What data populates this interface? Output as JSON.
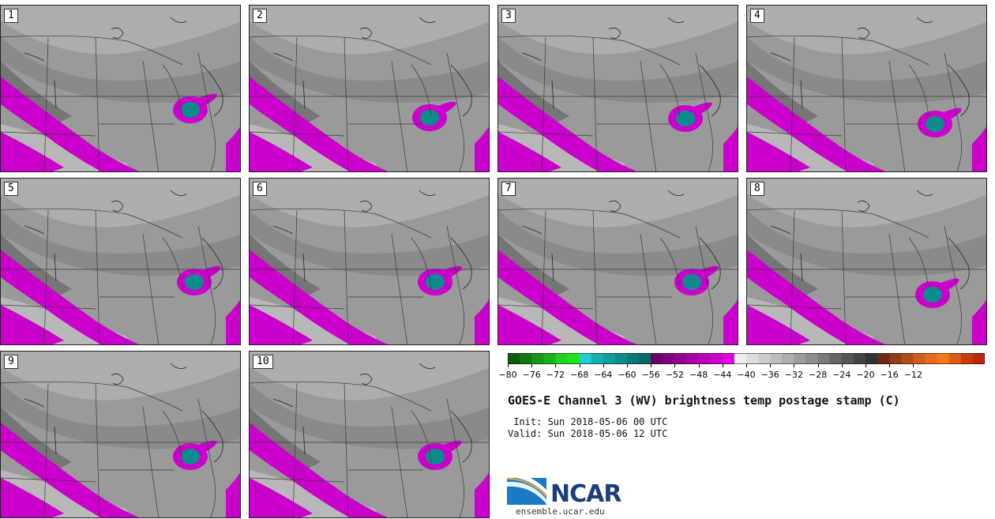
{
  "panels": [
    {
      "label": "1"
    },
    {
      "label": "2"
    },
    {
      "label": "3"
    },
    {
      "label": "4"
    },
    {
      "label": "5"
    },
    {
      "label": "6"
    },
    {
      "label": "7"
    },
    {
      "label": "8"
    },
    {
      "label": "9"
    },
    {
      "label": "10"
    }
  ],
  "colorbar": {
    "colors": [
      "#0a5c0a",
      "#0f7a0f",
      "#14961a",
      "#1ab21a",
      "#22d222",
      "#19e619",
      "#22cccc",
      "#14b0b0",
      "#109d9d",
      "#0c8c8c",
      "#0a7878",
      "#0a6a6a",
      "#6a006a",
      "#800080",
      "#920092",
      "#a600a6",
      "#bb00bb",
      "#cc00cc",
      "#e000e0",
      "#eeeeee",
      "#dcdcdc",
      "#cccccc",
      "#bdbdbd",
      "#adadad",
      "#9c9c9c",
      "#8c8c8c",
      "#7a7a7a",
      "#666666",
      "#555555",
      "#444444",
      "#333333",
      "#6b2a14",
      "#8f3b1a",
      "#b34a1a",
      "#d45c1a",
      "#e86a1a",
      "#f07a14",
      "#e05a14",
      "#cc3a0c",
      "#b82a0a"
    ],
    "tick_labels": [
      "-80",
      "-76",
      "-72",
      "-68",
      "-64",
      "-60",
      "-56",
      "-52",
      "-48",
      "-44",
      "-40",
      "-36",
      "-32",
      "-28",
      "-24",
      "-20",
      "-16",
      "-12"
    ]
  },
  "title": "GOES-E Channel 3 (WV) brightness temp postage stamp (C)",
  "init": " Init: Sun 2018-05-06 00 UTC",
  "valid": "Valid: Sun 2018-05-06 12 UTC",
  "logo": {
    "text": "NCAR",
    "site": "ensemble.ucar.edu"
  },
  "colors": {
    "magenta": "#cc00cc",
    "teal": "#0c8c8c",
    "gray": "#8c8c8c"
  }
}
